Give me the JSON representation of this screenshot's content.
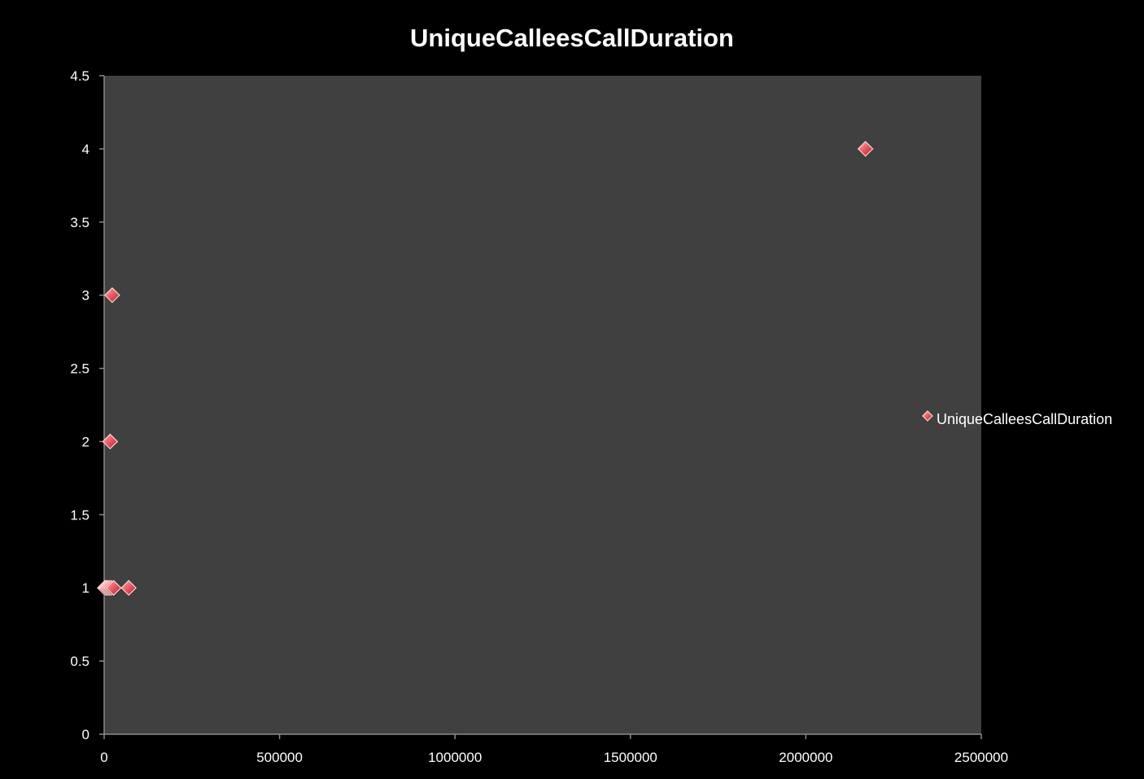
{
  "chart_data": {
    "type": "scatter",
    "title": "UniqueCalleesCallDuration",
    "xlabel": "",
    "ylabel": "",
    "xlim": [
      0,
      2500000
    ],
    "ylim": [
      0,
      4.5
    ],
    "x_ticks": [
      "0",
      "500000",
      "1000000",
      "1500000",
      "2000000",
      "2500000"
    ],
    "y_ticks": [
      "0",
      "0.5",
      "1",
      "1.5",
      "2",
      "2.5",
      "3",
      "3.5",
      "4",
      "4.5"
    ],
    "grid": false,
    "legend_position": "right",
    "series": [
      {
        "name": "UniqueCalleesCallDuration",
        "marker": "diamond",
        "color": "#e8535a",
        "points": [
          {
            "x": 2000,
            "y": 1
          },
          {
            "x": 5000,
            "y": 1
          },
          {
            "x": 9000,
            "y": 1
          },
          {
            "x": 14000,
            "y": 1
          },
          {
            "x": 20000,
            "y": 1
          },
          {
            "x": 27000,
            "y": 1
          },
          {
            "x": 70000,
            "y": 1
          },
          {
            "x": 17000,
            "y": 2
          },
          {
            "x": 23000,
            "y": 3
          },
          {
            "x": 2170000,
            "y": 4
          }
        ]
      }
    ],
    "colors": {
      "background": "#000000",
      "plot_area": "#404040",
      "axis": "#8a8a8a",
      "text": "#ffffff",
      "marker": "#e8535a"
    }
  }
}
